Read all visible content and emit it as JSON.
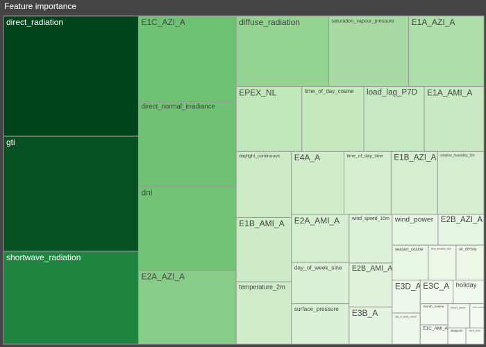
{
  "chart_data": {
    "type": "treemap",
    "title": "Feature importance",
    "categories": [
      "direct_radiation",
      "gti",
      "shortwave_radiation",
      "E1C_AZI_A",
      "direct_normal_irradiance",
      "dni",
      "E2A_AZI_A",
      "diffuse_radiation",
      "saturation_vapour_pressure",
      "E1A_AZI_A",
      "EPEX_NL",
      "time_of_day_cosine",
      "load_lag_P7D",
      "E1A_AMI_A",
      "daylight_continuous",
      "E1B_AMI_A",
      "temperature_2m",
      "E4A_A",
      "time_of_day_sine",
      "E1B_AZI_A",
      "relative_humidity_2m",
      "E2A_AMI_A",
      "day_of_week_sine",
      "surface_pressure",
      "wind_speed_10m",
      "E2B_AMI_A",
      "E3B_A",
      "wind_power",
      "E2B_AZI_A",
      "season_cosine",
      "wind_direction_10m",
      "air_density",
      "E3D_A",
      "day_of_week_cosine",
      "E3C_A",
      "holiday",
      "month_cosine",
      "E1C_AMI_A",
      "cloud_cover",
      "wind_speed_80m",
      "dewpoint",
      "open_price"
    ],
    "values": [
      334,
      320,
      258,
      172,
      171,
      169,
      148,
      134,
      116,
      109,
      88,
      83,
      81,
      80,
      75,
      73,
      71,
      68,
      61,
      60,
      60,
      57,
      49,
      48,
      43,
      39,
      33,
      29,
      29,
      26,
      20,
      20,
      19,
      18,
      16,
      15,
      12,
      11,
      11,
      7,
      6,
      6
    ],
    "colorscale": [
      "#f7fcf5",
      "#c7e9c0",
      "#74c476",
      "#238b45",
      "#00441b"
    ]
  }
}
